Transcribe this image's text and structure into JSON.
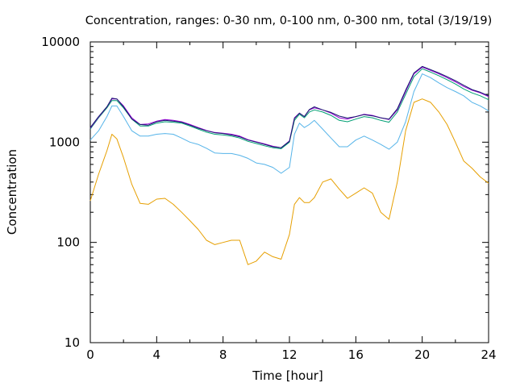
{
  "chart_data": {
    "type": "line",
    "title": "Concentration, ranges: 0-30 nm, 0-100 nm, 0-300 nm, total (3/19/19)",
    "xlabel": "Time [hour]",
    "ylabel": "Concentration",
    "xlim": [
      0,
      24
    ],
    "ylim": [
      10,
      10000
    ],
    "yscale": "log",
    "grid": false,
    "xticks": [
      "0",
      "4",
      "8",
      "12",
      "16",
      "20",
      "24"
    ],
    "yticks": [
      "10",
      "100",
      "1000",
      "10000"
    ],
    "x": [
      0,
      0.5,
      1,
      1.3,
      1.6,
      2,
      2.5,
      3,
      3.5,
      4,
      4.5,
      5,
      5.5,
      6,
      6.5,
      7,
      7.5,
      8,
      8.5,
      9,
      9.5,
      10,
      10.5,
      11,
      11.5,
      12,
      12.3,
      12.6,
      12.9,
      13.2,
      13.5,
      14,
      14.5,
      15,
      15.5,
      16,
      16.5,
      17,
      17.5,
      18,
      18.5,
      19,
      19.5,
      20,
      20.5,
      21,
      21.5,
      22,
      22.5,
      23,
      23.5,
      24
    ],
    "series": [
      {
        "color": "#e69f00",
        "values": [
          260,
          480,
          820,
          1200,
          1080,
          700,
          380,
          245,
          240,
          270,
          275,
          240,
          200,
          165,
          135,
          105,
          95,
          100,
          105,
          105,
          60,
          65,
          80,
          72,
          68,
          120,
          240,
          280,
          250,
          250,
          280,
          400,
          430,
          340,
          275,
          310,
          350,
          310,
          200,
          170,
          400,
          1300,
          2500,
          2700,
          2500,
          2000,
          1500,
          1000,
          650,
          550,
          450,
          390
        ]
      },
      {
        "color": "#56b4e9",
        "values": [
          1050,
          1300,
          1800,
          2300,
          2300,
          1800,
          1300,
          1150,
          1150,
          1200,
          1220,
          1200,
          1100,
          1000,
          950,
          870,
          780,
          770,
          770,
          740,
          690,
          620,
          600,
          560,
          490,
          560,
          1200,
          1550,
          1400,
          1500,
          1650,
          1350,
          1100,
          900,
          900,
          1050,
          1150,
          1050,
          950,
          850,
          1000,
          1600,
          3200,
          4800,
          4400,
          3900,
          3500,
          3200,
          2900,
          2500,
          2300,
          2050
        ]
      },
      {
        "color": "#009e73",
        "values": [
          1350,
          1750,
          2200,
          2600,
          2600,
          2200,
          1700,
          1450,
          1450,
          1550,
          1600,
          1580,
          1550,
          1450,
          1350,
          1260,
          1200,
          1180,
          1150,
          1100,
          1020,
          970,
          920,
          880,
          860,
          1000,
          1650,
          1900,
          1750,
          2000,
          2100,
          2000,
          1850,
          1650,
          1600,
          1700,
          1800,
          1750,
          1650,
          1580,
          2000,
          3000,
          4500,
          5400,
          5000,
          4600,
          4200,
          3800,
          3400,
          3100,
          2900,
          2650
        ]
      },
      {
        "color": "#9400d3",
        "values": [
          1380,
          1780,
          2250,
          2700,
          2700,
          2300,
          1750,
          1500,
          1520,
          1620,
          1680,
          1650,
          1600,
          1500,
          1400,
          1310,
          1250,
          1230,
          1200,
          1150,
          1060,
          1010,
          960,
          910,
          880,
          1030,
          1750,
          1950,
          1800,
          2100,
          2200,
          2100,
          1950,
          1750,
          1700,
          1800,
          1900,
          1850,
          1750,
          1680,
          2100,
          3200,
          4800,
          5600,
          5200,
          4800,
          4400,
          4000,
          3600,
          3300,
          3100,
          2850
        ]
      },
      {
        "color": "#191970",
        "values": [
          1400,
          1800,
          2250,
          2750,
          2700,
          2250,
          1700,
          1500,
          1480,
          1600,
          1650,
          1620,
          1580,
          1480,
          1380,
          1300,
          1240,
          1220,
          1180,
          1130,
          1050,
          1000,
          950,
          900,
          880,
          1020,
          1720,
          1950,
          1800,
          2120,
          2250,
          2100,
          1980,
          1820,
          1740,
          1800,
          1880,
          1830,
          1750,
          1700,
          2150,
          3300,
          4900,
          5700,
          5300,
          4900,
          4500,
          4100,
          3700,
          3350,
          3150,
          2900
        ]
      }
    ]
  }
}
